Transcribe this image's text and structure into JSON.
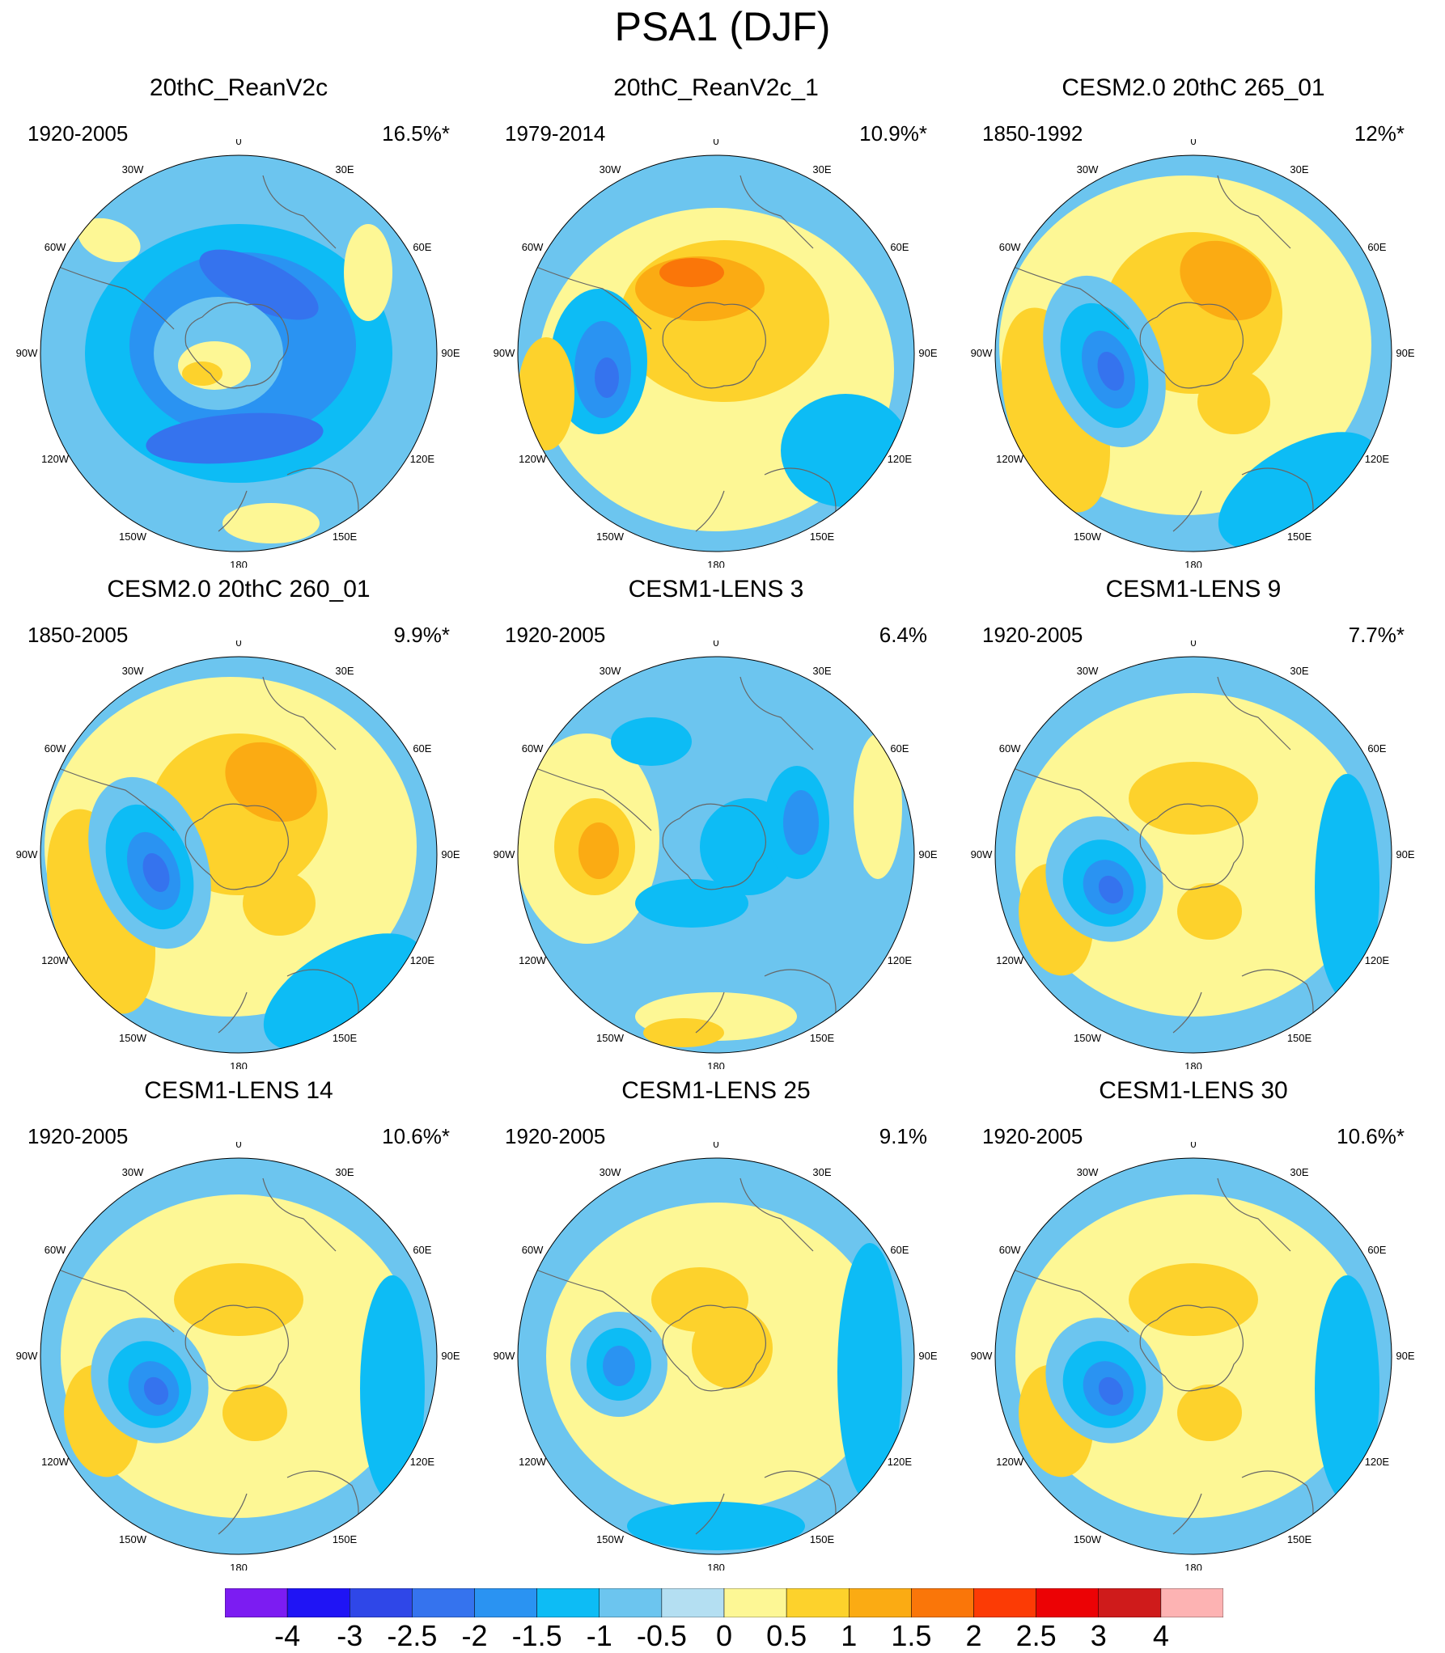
{
  "title": "PSA1 (DJF)",
  "longitude_labels": [
    "0",
    "30E",
    "60E",
    "90E",
    "120E",
    "150E",
    "180",
    "150W",
    "120W",
    "90W",
    "60W",
    "30W"
  ],
  "panels": [
    {
      "title": "20thC_ReanV2c",
      "period": "1920-2005",
      "percent": "16.5%*",
      "pattern": "ring_negative"
    },
    {
      "title": "20thC_ReanV2c_1",
      "period": "1979-2014",
      "percent": "10.9%*",
      "pattern": "positive_center"
    },
    {
      "title": "CESM2.0 20thC 265_01",
      "period": "1850-1992",
      "percent": "12%*",
      "pattern": "psa_strong"
    },
    {
      "title": "CESM2.0 20thC 260_01",
      "period": "1850-2005",
      "percent": "9.9%*",
      "pattern": "psa_strong"
    },
    {
      "title": "CESM1-LENS 3",
      "period": "1920-2005",
      "percent": "6.4%",
      "pattern": "mixed"
    },
    {
      "title": "CESM1-LENS 9",
      "period": "1920-2005",
      "percent": "7.7%*",
      "pattern": "psa_moderate"
    },
    {
      "title": "CESM1-LENS 14",
      "period": "1920-2005",
      "percent": "10.6%*",
      "pattern": "psa_moderate"
    },
    {
      "title": "CESM1-LENS 25",
      "period": "1920-2005",
      "percent": "9.1%",
      "pattern": "psa_weak"
    },
    {
      "title": "CESM1-LENS 30",
      "period": "1920-2005",
      "percent": "10.6%*",
      "pattern": "psa_moderate"
    }
  ],
  "colorbar": {
    "labels": [
      "-4",
      "-3",
      "-2.5",
      "-2",
      "-1.5",
      "-1",
      "-0.5",
      "0",
      "0.5",
      "1",
      "1.5",
      "2",
      "2.5",
      "3",
      "4"
    ],
    "colors": [
      "#7c1cf2",
      "#1f14f5",
      "#2f47e8",
      "#3573ee",
      "#2a93f2",
      "#0dbcf5",
      "#6cc5ef",
      "#b4dff2",
      "#fdf795",
      "#fdd22c",
      "#fbab13",
      "#fa7609",
      "#fc3b05",
      "#ec0205",
      "#cf1b1b",
      "#fdb3b3"
    ]
  }
}
